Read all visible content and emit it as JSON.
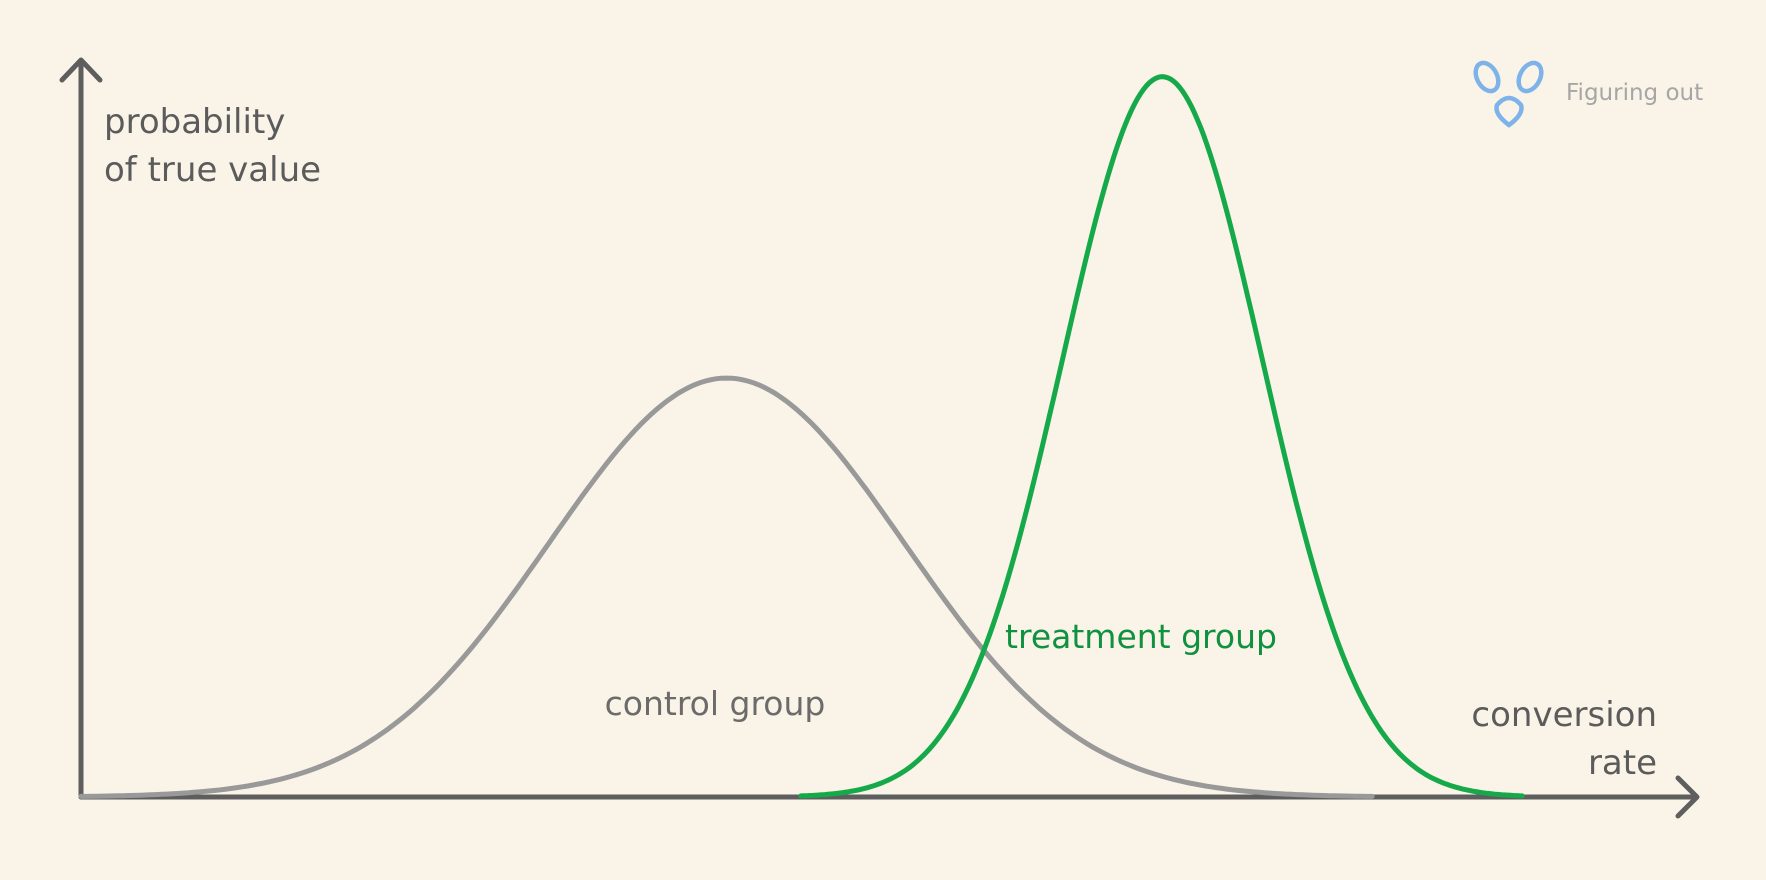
{
  "colors": {
    "background": "#faf4e8",
    "axis": "#5e5e5e",
    "control": "#999999",
    "treatment": "#16a94a",
    "treatment_label": "#0f9140",
    "logo": "#7eb3ea"
  },
  "brand": {
    "text": "Figuring out",
    "icon": "figuring-out-logo-icon"
  },
  "chart_data": {
    "type": "line",
    "grid": false,
    "ylabel_lines": [
      "probability",
      "of true value"
    ],
    "xlabel_lines": [
      "conversion",
      "rate"
    ],
    "xlim": [
      0,
      100
    ],
    "ylim": [
      0,
      100
    ],
    "series": [
      {
        "name": "control group",
        "mu": 40,
        "sigma": 11,
        "peak": 57,
        "range": [
          0,
          80
        ]
      },
      {
        "name": "treatment group",
        "mu": 67,
        "sigma": 6.2,
        "peak": 98,
        "range": [
          44.6,
          89.3
        ]
      }
    ]
  }
}
